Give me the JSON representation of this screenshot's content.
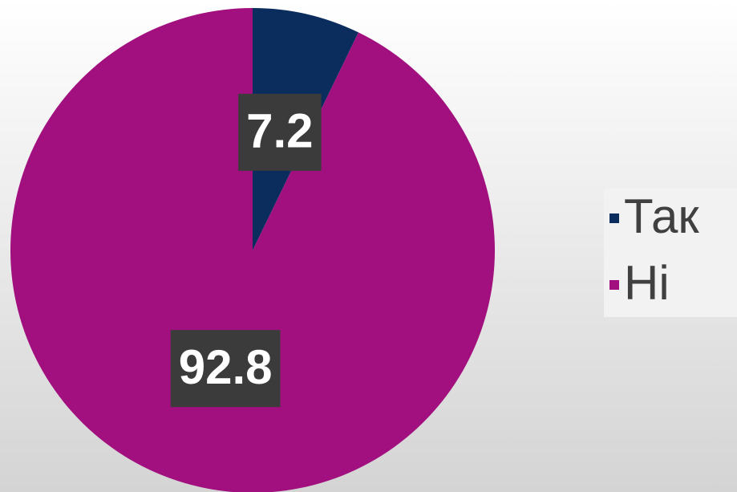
{
  "chart_data": {
    "type": "pie",
    "categories": [
      "Так",
      "Ні"
    ],
    "values": [
      7.2,
      92.8
    ],
    "colors": [
      "#0b2d5e",
      "#a1107e"
    ],
    "legend": "right"
  }
}
